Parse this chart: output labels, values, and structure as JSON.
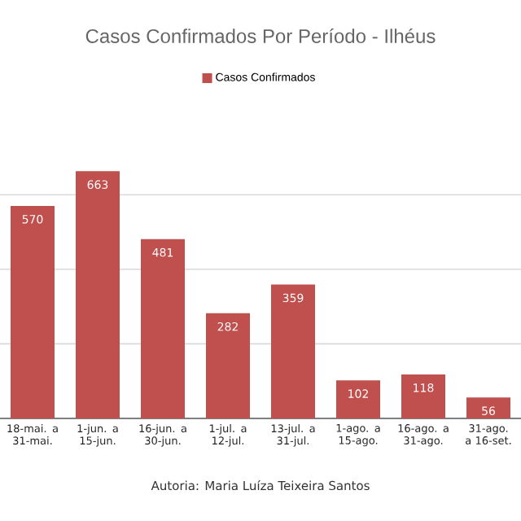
{
  "chart_data": {
    "type": "bar",
    "title": "Casos Confirmados Por Período - Ilhéus",
    "categories": [
      "18-mai. a 31-mai.",
      "1-jun. a 15-jun.",
      "16-jun. a 30-jun.",
      "1-jul. a 12-jul.",
      "13-jul. a 31-jul.",
      "1-ago. a 15-ago.",
      "16-ago. a 31-ago.",
      "31-ago. a 16-set."
    ],
    "series": [
      {
        "name": "Casos Confirmados",
        "color": "#c0504d",
        "values": [
          570,
          663,
          481,
          282,
          359,
          102,
          118,
          56
        ]
      }
    ],
    "grid": "y",
    "legend": "top",
    "data_labels": true,
    "tick_labels": "x",
    "annotations": [
      "Autoria: Maria Luíza Teixeira Santos"
    ]
  }
}
